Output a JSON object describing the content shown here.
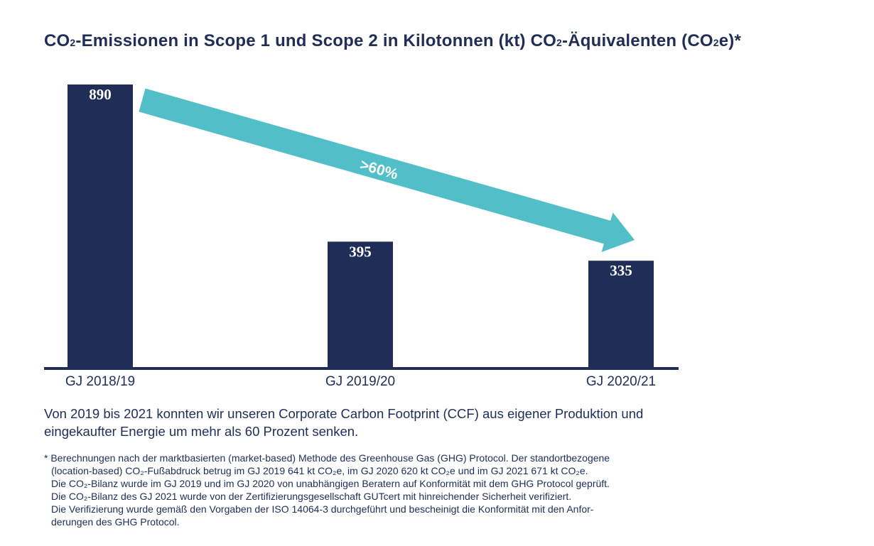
{
  "title": {
    "prefix": "CO",
    "sub1": "2",
    "middle": "-Emissionen in Scope 1 und Scope 2 in Kilotonnen (kt) CO",
    "sub2": "2",
    "middle2": "-Äquivalenten (CO",
    "sub3": "2",
    "suffix": "e)*"
  },
  "chart_data": {
    "type": "bar",
    "categories": [
      "GJ 2018/19",
      "GJ 2019/20",
      "GJ 2020/21"
    ],
    "values": [
      890,
      395,
      335
    ],
    "data_labels": [
      "890",
      "395",
      "335"
    ],
    "annotation": ">60%",
    "ylim": [
      0,
      890
    ],
    "colors": {
      "bar": "#1f2d57",
      "arrow": "#52bfc8",
      "label": "#ffffff",
      "axis": "#1f2d57"
    }
  },
  "summary": "Von 2019 bis 2021 konnten wir unseren Corporate Carbon Footprint (CCF) aus eigener Produktion und eingekaufter Energie um mehr als 60 Prozent senken.",
  "footnote": [
    "* Berechnungen nach der marktbasierten (market-based) Methode des Greenhouse Gas (GHG) Protocol. Der standortbezogene",
    "(location-based) CO₂-Fußabdruck betrug im GJ 2019 641 kt CO₂e, im GJ 2020 620 kt CO₂e und im GJ 2021 671 kt CO₂e.",
    "Die CO₂-Bilanz wurde im GJ 2019 und im GJ 2020 von unabhängigen Beratern auf Konformität mit dem GHG Protocol geprüft.",
    "Die CO₂-Bilanz des GJ 2021 wurde von der Zertifizierungsgesellschaft GUTcert mit hinreichender Sicherheit verifiziert.",
    "Die Verifizierung wurde gemäß den Vorgaben der ISO 14064-3 durchgeführt und bescheinigt die Konformität mit den Anfor-",
    "derungen des GHG Protocol."
  ]
}
